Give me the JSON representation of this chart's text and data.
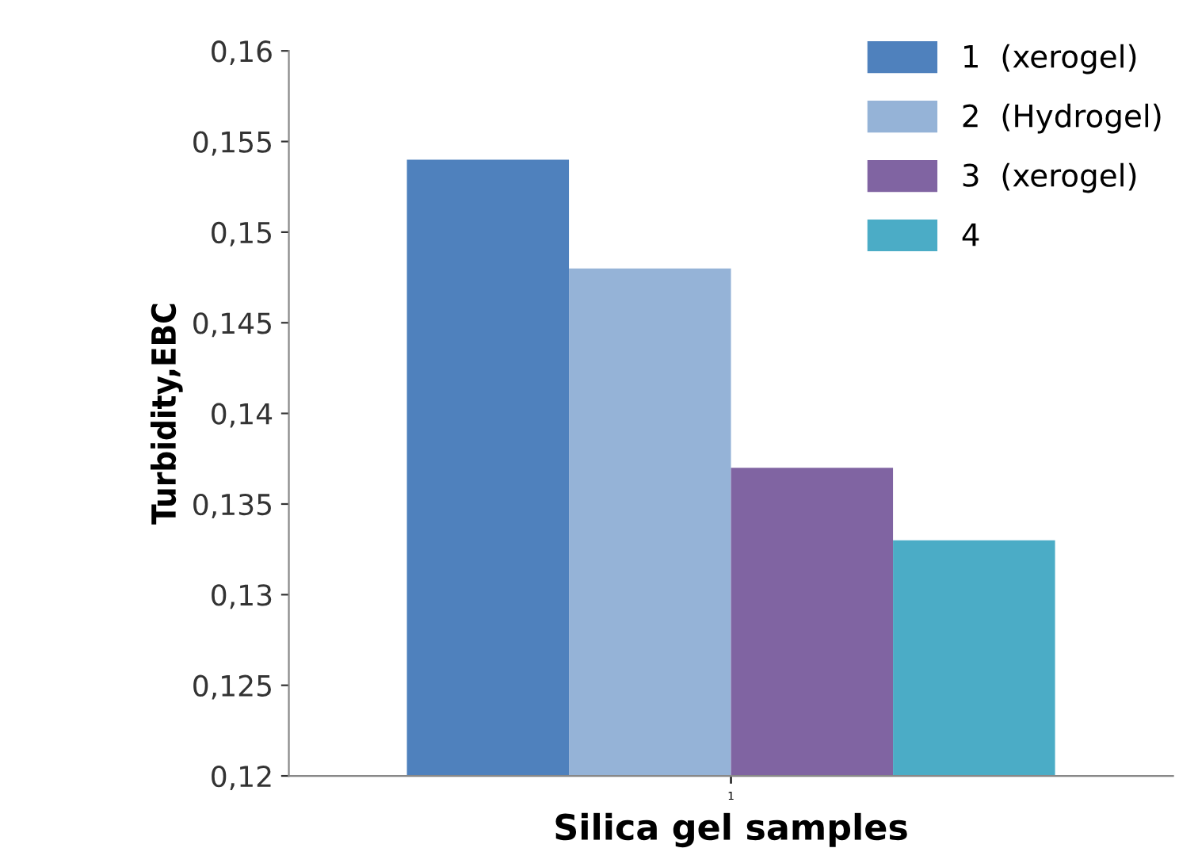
{
  "chart_data": {
    "type": "bar",
    "xlabel": "Silica gel samples",
    "ylabel": "Turbidity,EBC",
    "categories": [
      "1"
    ],
    "series": [
      {
        "name": "1  (xerogel)",
        "color": "#4f81bd",
        "values": [
          0.154
        ]
      },
      {
        "name": "2  (Hydrogel)",
        "color": "#95b3d7",
        "values": [
          0.148
        ]
      },
      {
        "name": "3  (xerogel)",
        "color": "#8064a2",
        "values": [
          0.137
        ]
      },
      {
        "name": "4",
        "color": "#4bacc6",
        "values": [
          0.133
        ]
      }
    ],
    "ylim": [
      0.12,
      0.16
    ],
    "yticks": [
      {
        "value": 0.12,
        "label": "0,12"
      },
      {
        "value": 0.125,
        "label": "0,125"
      },
      {
        "value": 0.13,
        "label": "0,13"
      },
      {
        "value": 0.135,
        "label": "0,135"
      },
      {
        "value": 0.14,
        "label": "0,14"
      },
      {
        "value": 0.145,
        "label": "0,145"
      },
      {
        "value": 0.15,
        "label": "0,15"
      },
      {
        "value": 0.155,
        "label": "0,155"
      },
      {
        "value": 0.16,
        "label": "0,16"
      }
    ],
    "grid": false,
    "legend": "top right"
  }
}
